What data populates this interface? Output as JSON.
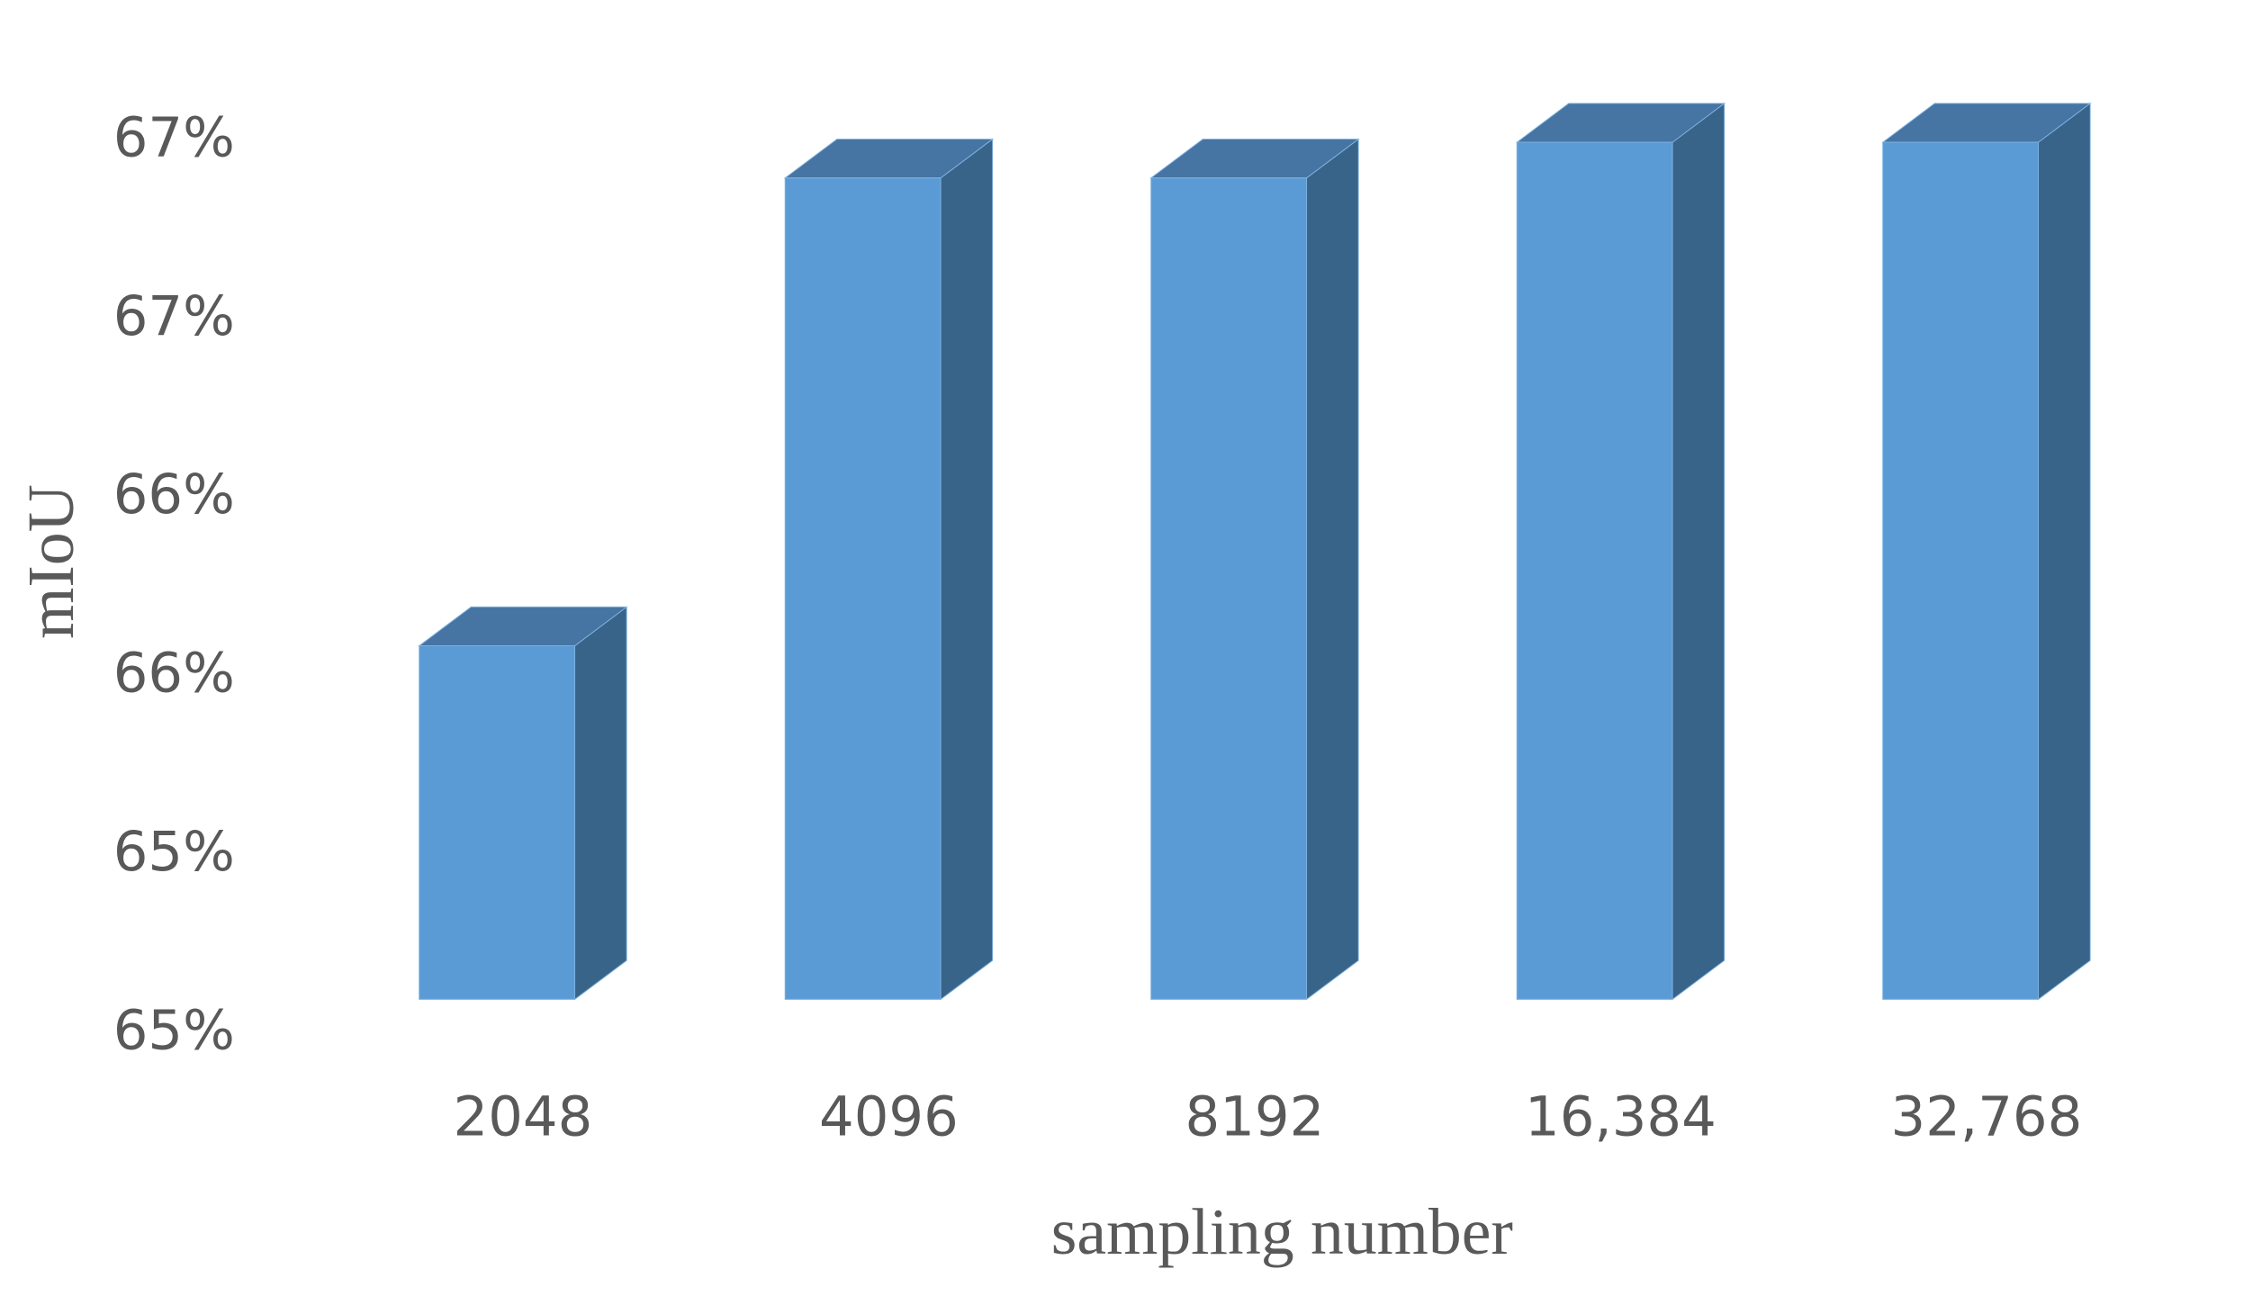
{
  "chart_data": {
    "type": "bar3d",
    "x_label": "sampling  number",
    "y_label": "mIoU",
    "categories": [
      "2048",
      "4096",
      "8192",
      "16,384",
      "32,768"
    ],
    "values": [
      65.49,
      66.8,
      66.8,
      66.9,
      66.9
    ],
    "color": "#5b9bd5",
    "ylim": [
      64.5,
      67.0
    ],
    "yticks": [
      {
        "value": 64.5,
        "label": "65%"
      },
      {
        "value": 65.0,
        "label": "65%"
      },
      {
        "value": 65.5,
        "label": "66%"
      },
      {
        "value": 66.0,
        "label": "66%"
      },
      {
        "value": 66.5,
        "label": "67%"
      },
      {
        "value": 67.0,
        "label": "67%"
      }
    ],
    "grid": false
  }
}
